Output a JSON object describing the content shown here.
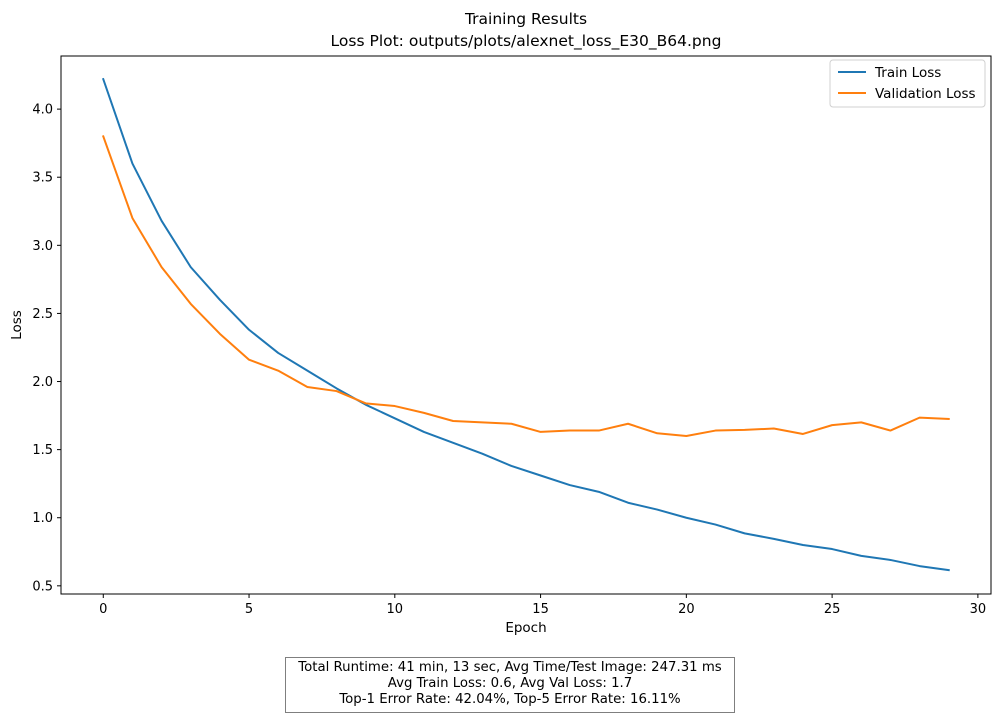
{
  "chart_data": {
    "type": "line",
    "title": "Training Results",
    "subtitle": "Loss Plot: outputs/plots/alexnet_loss_E30_B64.png",
    "xlabel": "Epoch",
    "ylabel": "Loss",
    "xlim": [
      -1.45,
      30.45
    ],
    "ylim": [
      0.44,
      4.39
    ],
    "xticks": [
      0,
      5,
      10,
      15,
      20,
      25,
      30
    ],
    "yticks": [
      0.5,
      1.0,
      1.5,
      2.0,
      2.5,
      3.0,
      3.5,
      4.0
    ],
    "xtick_labels": [
      "0",
      "5",
      "10",
      "15",
      "20",
      "25",
      "30"
    ],
    "ytick_labels": [
      "0.5",
      "1.0",
      "1.5",
      "2.0",
      "2.5",
      "3.0",
      "3.5",
      "4.0"
    ],
    "grid": false,
    "legend_position": "top-right",
    "x": [
      0,
      1,
      2,
      3,
      4,
      5,
      6,
      7,
      8,
      9,
      10,
      11,
      12,
      13,
      14,
      15,
      16,
      17,
      18,
      19,
      20,
      21,
      22,
      23,
      24,
      25,
      26,
      27,
      28,
      29
    ],
    "series": [
      {
        "name": "Train Loss",
        "color": "#1f77b4",
        "values": [
          4.22,
          3.6,
          3.18,
          2.84,
          2.6,
          2.38,
          2.21,
          2.08,
          1.95,
          1.83,
          1.73,
          1.63,
          1.55,
          1.47,
          1.38,
          1.31,
          1.24,
          1.19,
          1.11,
          1.06,
          1.0,
          0.95,
          0.885,
          0.845,
          0.8,
          0.77,
          0.72,
          0.69,
          0.645,
          0.615
        ]
      },
      {
        "name": "Validation Loss",
        "color": "#ff7f0e",
        "values": [
          3.8,
          3.2,
          2.84,
          2.57,
          2.35,
          2.16,
          2.08,
          1.96,
          1.93,
          1.84,
          1.82,
          1.77,
          1.71,
          1.7,
          1.69,
          1.63,
          1.64,
          1.64,
          1.69,
          1.62,
          1.6,
          1.64,
          1.645,
          1.655,
          1.615,
          1.68,
          1.7,
          1.64,
          1.735,
          1.725
        ]
      }
    ]
  },
  "stats": {
    "line1": "Total Runtime: 41 min, 13 sec, Avg Time/Test Image: 247.31 ms",
    "line2": "Avg Train Loss: 0.6, Avg Val Loss: 1.7",
    "line3": "Top-1 Error Rate: 42.04%, Top-5 Error Rate: 16.11%"
  }
}
